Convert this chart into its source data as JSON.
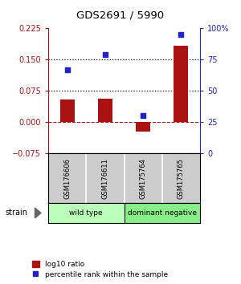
{
  "title": "GDS2691 / 5990",
  "samples": [
    "GSM176606",
    "GSM176611",
    "GSM175764",
    "GSM175765"
  ],
  "log10_ratio": [
    0.055,
    0.057,
    -0.022,
    0.183
  ],
  "percentile_rank": [
    67,
    79,
    30,
    95
  ],
  "bar_color": "#aa1111",
  "dot_color": "#2222cc",
  "ylim_left": [
    -0.075,
    0.225
  ],
  "ylim_right": [
    0,
    100
  ],
  "yticks_left": [
    -0.075,
    0,
    0.075,
    0.15,
    0.225
  ],
  "yticks_right": [
    0,
    25,
    50,
    75,
    100
  ],
  "hlines": [
    0.075,
    0.15
  ],
  "zero_line": 0,
  "groups": [
    {
      "label": "wild type",
      "indices": [
        0,
        1
      ],
      "color": "#bbffbb"
    },
    {
      "label": "dominant negative",
      "indices": [
        2,
        3
      ],
      "color": "#88ee88"
    }
  ],
  "strain_label": "strain",
  "legend_bar_label": "log10 ratio",
  "legend_dot_label": "percentile rank within the sample",
  "sample_box_color": "#cccccc",
  "background_color": "#ffffff"
}
